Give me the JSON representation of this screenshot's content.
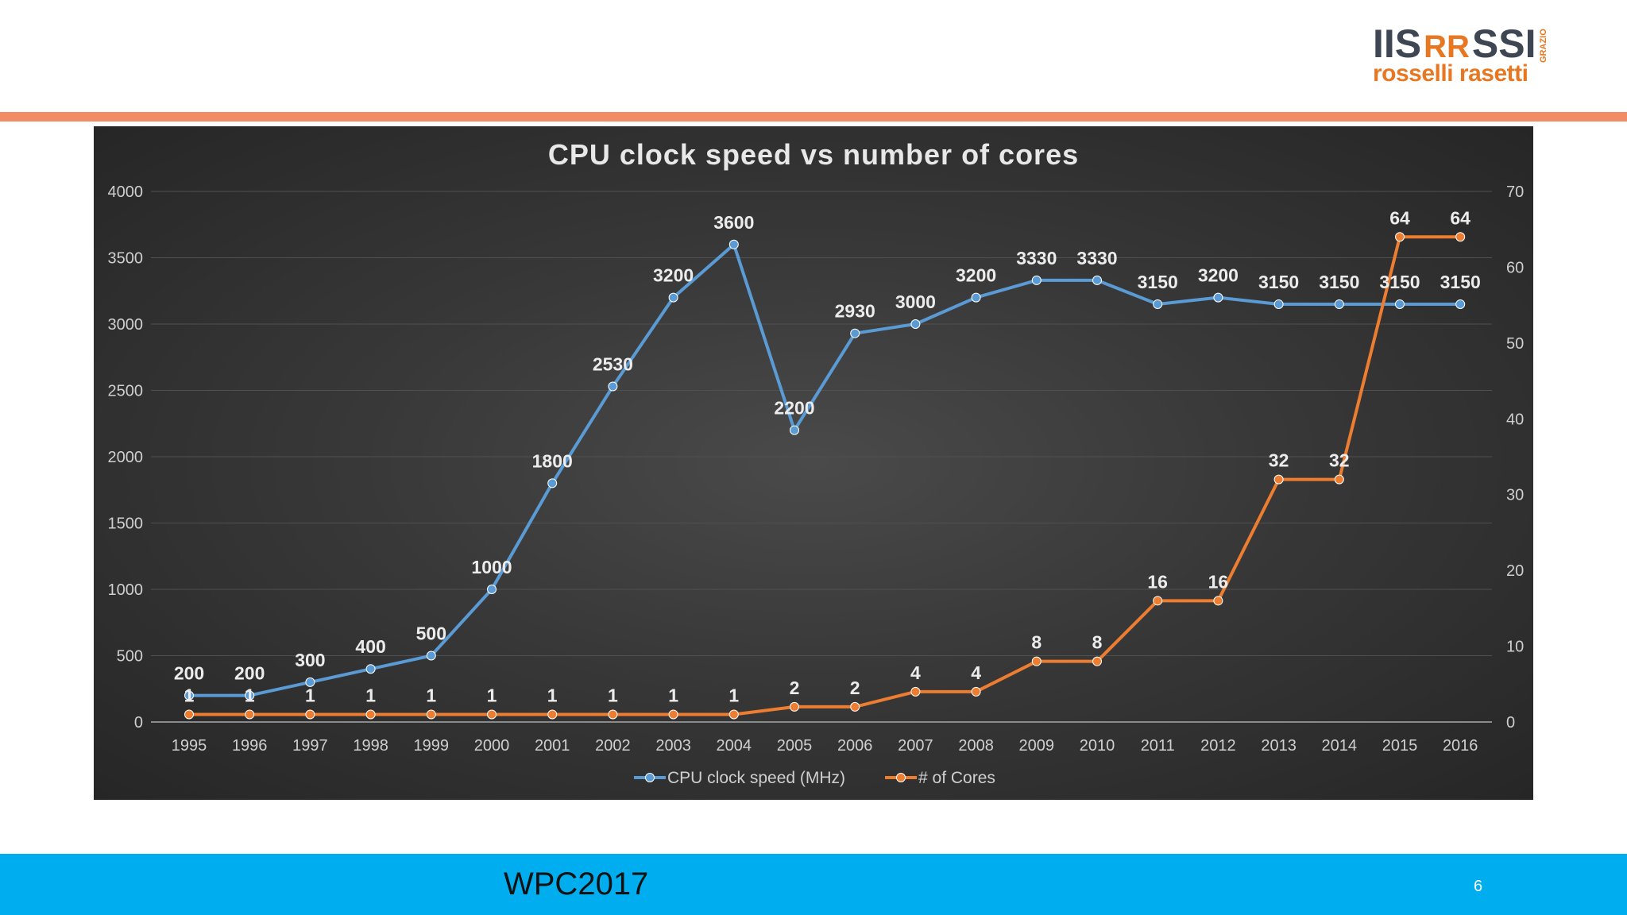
{
  "logo": {
    "line1_left": "IIS",
    "line1_mid": "RR",
    "line1_right": "SSI",
    "line1_small": "GRAZIO",
    "line2": "rosselli rasetti",
    "colors": {
      "dark": "#3d4652",
      "orange": "#e87722"
    }
  },
  "footer": {
    "title": "WPC2017",
    "page": "6"
  },
  "colors": {
    "accent_bar": "#f28c65",
    "footer_bg": "#00aeef"
  },
  "chart_data": {
    "type": "line",
    "title": "CPU clock speed vs number of cores",
    "categories": [
      "1995",
      "1996",
      "1997",
      "1998",
      "1999",
      "2000",
      "2001",
      "2002",
      "2003",
      "2004",
      "2005",
      "2006",
      "2007",
      "2008",
      "2009",
      "2010",
      "2011",
      "2012",
      "2013",
      "2014",
      "2015",
      "2016"
    ],
    "series": [
      {
        "name": "CPU clock speed (MHz)",
        "axis": "left",
        "color": "#5b9bd5",
        "values": [
          200,
          200,
          300,
          400,
          500,
          1000,
          1800,
          2530,
          3200,
          3600,
          2200,
          2930,
          3000,
          3200,
          3330,
          3330,
          3150,
          3200,
          3150,
          3150,
          3150,
          3150
        ]
      },
      {
        "name": "# of Cores",
        "axis": "right",
        "color": "#ed7d31",
        "values": [
          1,
          1,
          1,
          1,
          1,
          1,
          1,
          1,
          1,
          1,
          2,
          2,
          4,
          4,
          8,
          8,
          16,
          16,
          32,
          32,
          64,
          64
        ]
      }
    ],
    "y_left": {
      "min": 0,
      "max": 4000,
      "ticks": [
        0,
        500,
        1000,
        1500,
        2000,
        2500,
        3000,
        3500,
        4000
      ]
    },
    "y_right": {
      "min": 0,
      "max": 70,
      "ticks": [
        0,
        10,
        20,
        30,
        40,
        50,
        60,
        70
      ]
    },
    "grid": true,
    "legend": "bottom",
    "data_labels": true
  }
}
